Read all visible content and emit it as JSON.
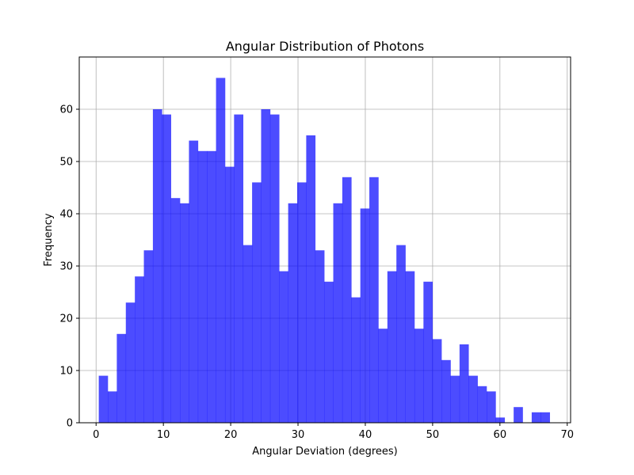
{
  "chart_data": {
    "type": "bar",
    "title": "Angular Distribution of Photons",
    "xlabel": "Angular Deviation (degrees)",
    "ylabel": "Frequency",
    "xlim": [
      -2.5,
      70.5
    ],
    "ylim": [
      0,
      70
    ],
    "xticks": [
      0,
      10,
      20,
      30,
      40,
      50,
      60,
      70
    ],
    "yticks": [
      0,
      10,
      20,
      30,
      40,
      50,
      60
    ],
    "grid": true,
    "bar_color": "#0000ff",
    "bar_opacity": 0.7,
    "bin_edges": [
      0.4,
      1.74,
      3.08,
      4.42,
      5.76,
      7.1,
      8.44,
      9.78,
      11.12,
      12.46,
      13.8,
      15.14,
      16.48,
      17.82,
      19.16,
      20.5,
      21.84,
      23.18,
      24.52,
      25.86,
      27.2,
      28.54,
      29.88,
      31.22,
      32.56,
      33.9,
      35.24,
      36.58,
      37.92,
      39.26,
      40.6,
      41.94,
      43.28,
      44.62,
      45.96,
      47.3,
      48.64,
      49.98,
      51.32,
      52.66,
      54.0,
      55.34,
      56.68,
      58.02,
      59.36,
      60.7,
      62.04,
      63.38,
      64.72,
      66.06,
      67.4
    ],
    "values": [
      9,
      6,
      17,
      23,
      28,
      33,
      60,
      59,
      43,
      42,
      54,
      52,
      52,
      66,
      49,
      59,
      34,
      46,
      60,
      59,
      29,
      42,
      46,
      55,
      33,
      27,
      42,
      47,
      24,
      41,
      47,
      18,
      29,
      34,
      29,
      18,
      27,
      16,
      12,
      9,
      15,
      9,
      7,
      6,
      1,
      0,
      3,
      0,
      2,
      2
    ]
  }
}
